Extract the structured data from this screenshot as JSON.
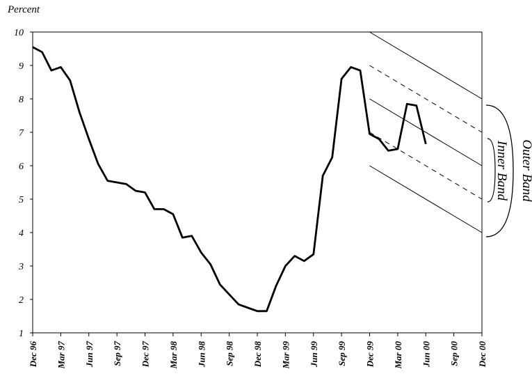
{
  "chart_data": {
    "type": "line",
    "ylabel": "Percent",
    "ylim": [
      1,
      10
    ],
    "yticks": [
      1,
      2,
      3,
      4,
      5,
      6,
      7,
      8,
      9,
      10
    ],
    "xtick_labels": [
      "Dec 96",
      "Mar 97",
      "Jun 97",
      "Sep 97",
      "Dec 97",
      "Mar 98",
      "Jun 98",
      "Sep 98",
      "Dec 98",
      "Mar 99",
      "Jun 99",
      "Sep 99",
      "Dec 99",
      "Mar 00",
      "Jun 00",
      "Sep 00",
      "Dec 00"
    ],
    "series": [
      {
        "x": [
          "Dec 96",
          "Jan 97",
          "Feb 97",
          "Mar 97",
          "Apr 97",
          "May 97",
          "Jun 97",
          "Jul 97",
          "Aug 97",
          "Sep 97",
          "Oct 97",
          "Nov 97",
          "Dec 97",
          "Jan 98",
          "Feb 98",
          "Mar 98",
          "Apr 98",
          "May 98",
          "Jun 98",
          "Jul 98",
          "Aug 98",
          "Sep 98",
          "Oct 98",
          "Nov 98",
          "Dec 98",
          "Jan 99",
          "Feb 99",
          "Mar 99",
          "Apr 99",
          "May 99",
          "Jun 99",
          "Jul 99",
          "Aug 99",
          "Sep 99",
          "Oct 99",
          "Nov 99",
          "Dec 99",
          "Jan 00",
          "Feb 00",
          "Mar 00",
          "Apr 00",
          "May 00",
          "Jun 00",
          "Jul 00",
          "Aug 00",
          "Sep 00",
          "Oct 00"
        ],
        "values": [
          9.55,
          9.4,
          8.85,
          8.95,
          8.55,
          7.6,
          6.8,
          6.05,
          5.55,
          5.5,
          5.45,
          5.25,
          5.2,
          4.7,
          4.7,
          4.55,
          3.85,
          3.9,
          3.4,
          3.05,
          2.45,
          2.15,
          1.85,
          1.75,
          1.65,
          1.65,
          2.4,
          3.0,
          3.3,
          3.15,
          3.35,
          5.7,
          6.25,
          8.6,
          8.95,
          8.85,
          6.95,
          6.8,
          6.45,
          6.5,
          7.85,
          7.8,
          6.65,
          null,
          null,
          null,
          null
        ]
      }
    ],
    "bands": [
      {
        "type": "solid",
        "from": [
          "Dec 99",
          10.0
        ],
        "to": [
          "Dec 00",
          8.0
        ]
      },
      {
        "type": "solid",
        "from": [
          "Dec 99",
          8.0
        ],
        "to": [
          "Dec 00",
          6.0
        ]
      },
      {
        "type": "solid",
        "from": [
          "Dec 99",
          6.0
        ],
        "to": [
          "Dec 00",
          4.0
        ]
      },
      {
        "type": "dashed",
        "from": [
          "Dec 99",
          9.0
        ],
        "to": [
          "Dec 00",
          7.0
        ]
      },
      {
        "type": "dashed",
        "from": [
          "Dec 99",
          7.0
        ],
        "to": [
          "Dec 00",
          5.0
        ]
      }
    ],
    "annotations": [
      "Outer Band",
      "Inner Band"
    ]
  }
}
